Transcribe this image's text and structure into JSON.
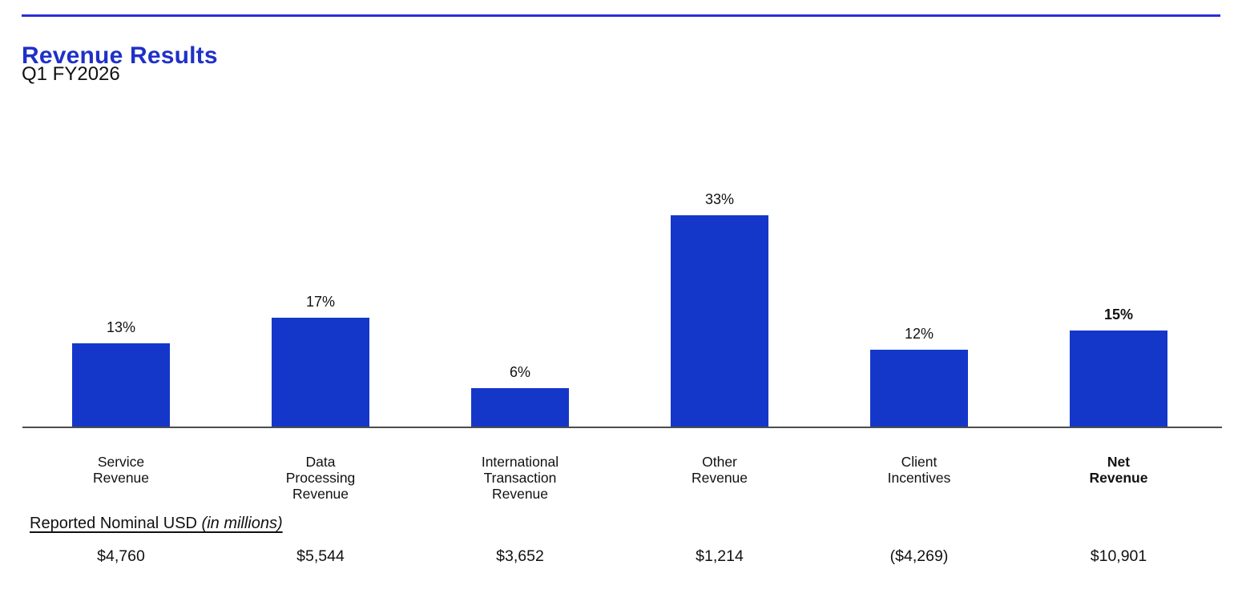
{
  "header": {
    "title": "Revenue Results",
    "subtitle": "Q1 FY2026"
  },
  "footer": {
    "label_plain": "Reported Nominal USD ",
    "label_italic": "(in millions)"
  },
  "colors": {
    "rule_blue": "#2B2FD6",
    "title_blue": "#1F31C8",
    "bar_blue": "#1537C9",
    "axis_gray": "#4D4D4D"
  },
  "chart_data": {
    "type": "bar",
    "title": "Revenue Results",
    "subtitle": "Q1 FY2026",
    "categories": [
      "Service\nRevenue",
      "Data\nProcessing\nRevenue",
      "International\nTransaction\nRevenue",
      "Other\nRevenue",
      "Client\nIncentives",
      "Net\nRevenue"
    ],
    "values": [
      13,
      17,
      6,
      33,
      12,
      15
    ],
    "value_suffix": "%",
    "bar_labels": [
      "13%",
      "17%",
      "6%",
      "33%",
      "12%",
      "15%"
    ],
    "usd_values": [
      "$4,760",
      "$5,544",
      "$3,652",
      "$1,214",
      "($4,269)",
      "$10,901"
    ],
    "emphasized_index": 5,
    "ylabel": "",
    "xlabel": "",
    "ylim": [
      0,
      35
    ],
    "grid": false,
    "legend": false,
    "footnote": "Reported Nominal USD (in millions)"
  }
}
